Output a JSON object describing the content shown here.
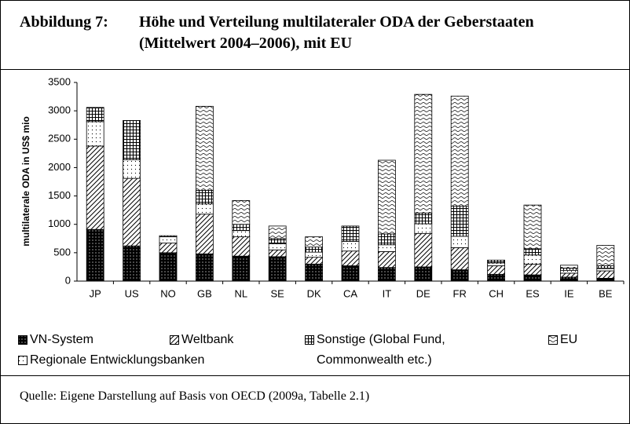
{
  "figure": {
    "label": "Abbildung 7:",
    "title": [
      "Höhe und Verteilung multilateraler ODA der Geberstaaten",
      "(Mittelwert 2004–2006), mit EU"
    ],
    "source": "Quelle: Eigene Darstellung auf Basis von OECD (2009a, Tabelle 2.1)"
  },
  "chart_data": {
    "type": "stacked_bar",
    "y_label": "multilaterale ODA in US$ mio",
    "categories": [
      "JP",
      "US",
      "NO",
      "GB",
      "NL",
      "SE",
      "DK",
      "CA",
      "IT",
      "DE",
      "FR",
      "CH",
      "ES",
      "IE",
      "BE"
    ],
    "series": [
      {
        "name": "VN-System",
        "pattern": "solid-dots",
        "values": [
          910,
          620,
          500,
          480,
          440,
          430,
          300,
          270,
          240,
          250,
          200,
          120,
          110,
          70,
          50
        ]
      },
      {
        "name": "Weltbank",
        "pattern": "diagonal",
        "values": [
          1470,
          1190,
          170,
          700,
          340,
          120,
          120,
          260,
          280,
          590,
          390,
          150,
          190,
          70,
          130
        ]
      },
      {
        "name": "Regionale Entwicklungsbanken",
        "pattern": "dots",
        "values": [
          430,
          330,
          110,
          180,
          110,
          110,
          90,
          170,
          120,
          170,
          200,
          50,
          160,
          50,
          40
        ]
      },
      {
        "name": "Sonstige (Global Fund, Commonwealth etc.)",
        "pattern": "grid",
        "values": [
          250,
          690,
          20,
          240,
          110,
          90,
          90,
          270,
          190,
          190,
          530,
          50,
          110,
          40,
          50
        ]
      },
      {
        "name": "EU",
        "pattern": "waves",
        "values": [
          0,
          0,
          0,
          1480,
          420,
          220,
          180,
          0,
          1300,
          2090,
          1940,
          0,
          770,
          50,
          360
        ]
      }
    ],
    "ylim": [
      0,
      3500
    ],
    "yticks": [
      0,
      500,
      1000,
      1500,
      2000,
      2500,
      3000,
      3500
    ],
    "grid": false
  }
}
